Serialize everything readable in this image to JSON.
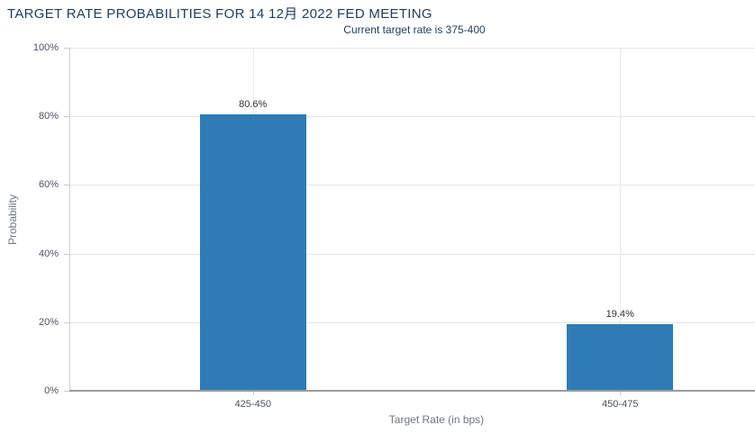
{
  "chart_data": {
    "type": "bar",
    "title": "TARGET RATE PROBABILITIES FOR 14 12月 2022 FED MEETING",
    "subtitle": "Current target rate is 375-400",
    "xlabel": "Target Rate (in bps)",
    "ylabel": "Probability",
    "categories": [
      "425-450",
      "450-475"
    ],
    "values": [
      80.6,
      19.4
    ],
    "data_labels": [
      "80.6%",
      "19.4%"
    ],
    "ylim": [
      0,
      100
    ],
    "yticks": [
      0,
      20,
      40,
      60,
      80,
      100
    ],
    "ytick_labels": [
      "0%",
      "20%",
      "40%",
      "60%",
      "80%",
      "100%"
    ],
    "grid": true,
    "legend": "none",
    "colors": {
      "bar": "#2d7cb5",
      "title": "#1e3c5f",
      "grid": "#e6e6e6",
      "axis_line": "#9c9c9c",
      "tick_label": "#4a5260",
      "axis_title": "#6f7782",
      "data_label": "#303030"
    }
  }
}
